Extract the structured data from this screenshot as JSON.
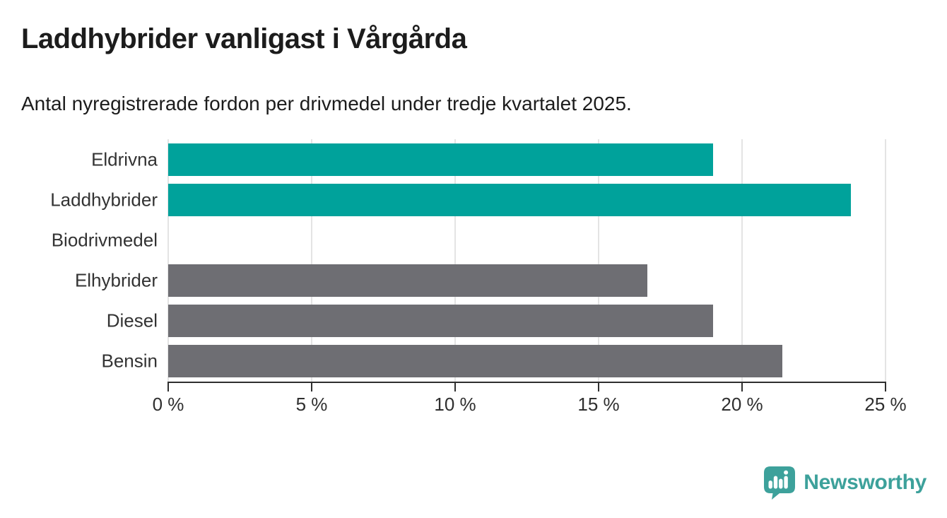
{
  "header": {
    "title": "Laddhybrider vanligast i Vårgårda",
    "subtitle": "Antal nyregistrerade fordon per drivmedel under tredje kvartalet 2025."
  },
  "footer": {
    "logo_text": "Newsworthy",
    "logo_icon": "speech-bubble-bar-chart-icon"
  },
  "colors": {
    "highlight_teal": "#00a29b",
    "neutral_gray": "#6e6e73",
    "gridline": "#e4e4e4",
    "axis": "#2f2f2f",
    "text": "#1c1c1c",
    "logo_teal": "#3da19b"
  },
  "chart_data": {
    "type": "bar",
    "orientation": "horizontal",
    "title": "Laddhybrider vanligast i Vårgårda",
    "subtitle": "Antal nyregistrerade fordon per drivmedel under tredje kvartalet 2025.",
    "categories": [
      "Eldrivna",
      "Laddhybrider",
      "Biodrivmedel",
      "Elhybrider",
      "Diesel",
      "Bensin"
    ],
    "values": [
      19.0,
      23.8,
      0,
      16.7,
      19.0,
      21.4
    ],
    "unit": "%",
    "xlim": [
      0,
      25
    ],
    "x_ticks": [
      0,
      5,
      10,
      15,
      20,
      25
    ],
    "x_tick_labels": [
      "0 %",
      "5 %",
      "10 %",
      "15 %",
      "20 %",
      "25 %"
    ],
    "bar_colors": [
      "#00a29b",
      "#00a29b",
      "#6e6e73",
      "#6e6e73",
      "#6e6e73",
      "#6e6e73"
    ],
    "grid": true,
    "legend": false
  }
}
